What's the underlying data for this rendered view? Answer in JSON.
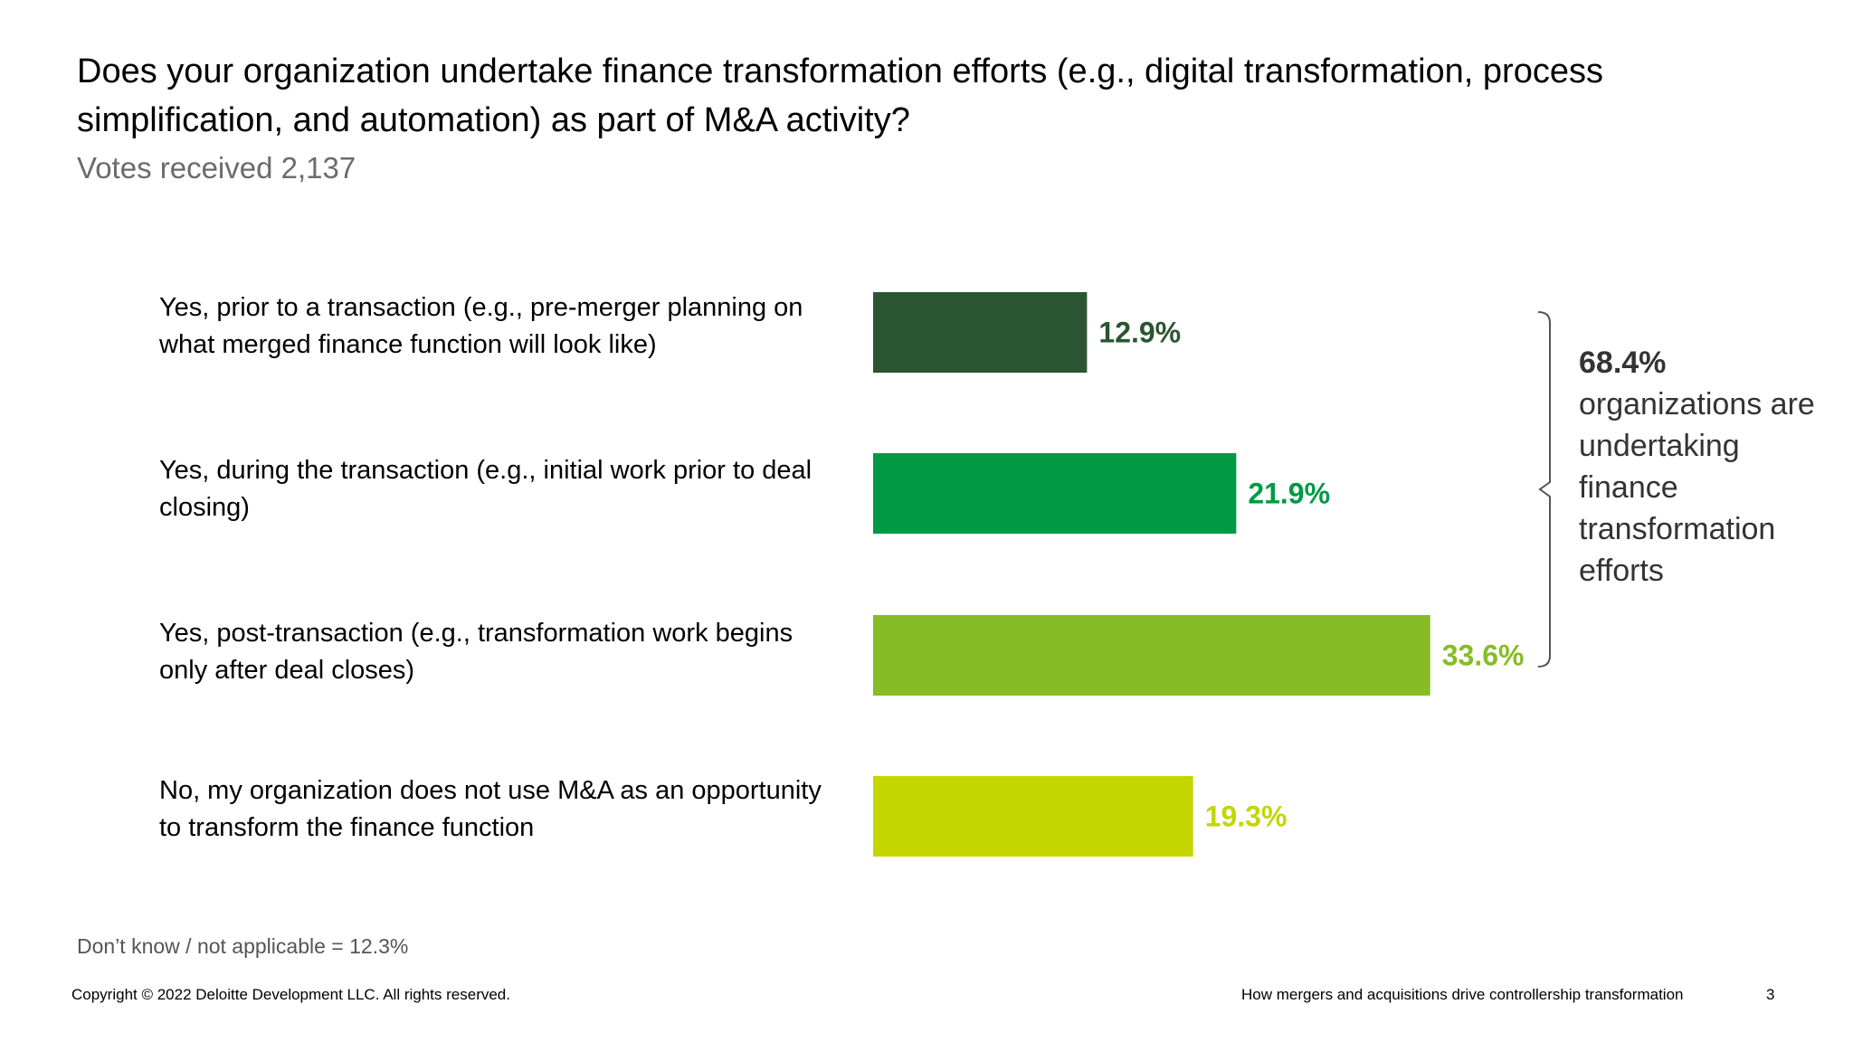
{
  "header": {
    "title": "Does your organization undertake finance transformation efforts (e.g., digital transformation, process simplification, and automation) as part of M&A activity?",
    "subtitle": "Votes received 2,137"
  },
  "chart_data": {
    "type": "bar",
    "orientation": "horizontal",
    "categories": [
      "Yes, prior to a transaction (e.g., pre-merger planning on what merged finance function will look like)",
      "Yes, during the transaction (e.g., initial work prior to deal closing)",
      "Yes, post-transaction (e.g., transformation work begins only after deal closes)",
      "No, my organization does not use M&A as an opportunity to transform the finance function"
    ],
    "values": [
      12.9,
      21.9,
      33.6,
      19.3
    ],
    "value_labels": [
      "12.9%",
      "21.9%",
      "33.6%",
      "19.3%"
    ],
    "colors": [
      "#2b5530",
      "#009a44",
      "#86bc25",
      "#c4d600"
    ],
    "unit": "%",
    "grid": false,
    "legend": "none",
    "annotation": {
      "value": "68.4%",
      "text": "organizations are undertaking finance transformation efforts",
      "brackets_categories": [
        0,
        1,
        2
      ]
    }
  },
  "footnote": "Don’t know / not applicable = 12.3%",
  "footer": {
    "copyright": "Copyright © 2022 Deloitte Development LLC. All rights reserved.",
    "report_title": "How mergers and acquisitions drive controllership transformation",
    "page_number": "3"
  }
}
